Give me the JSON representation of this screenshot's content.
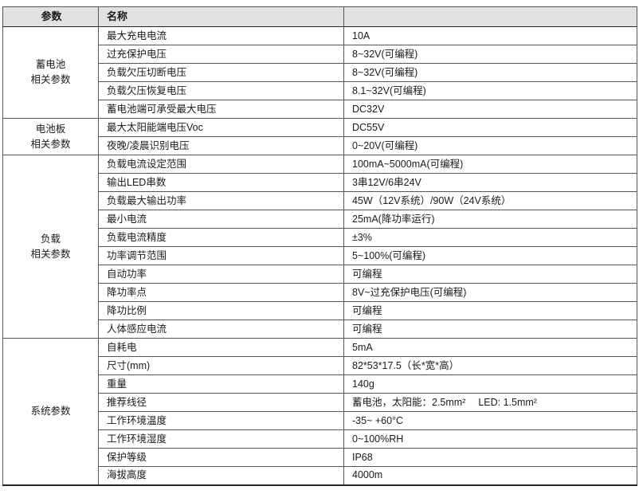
{
  "table": {
    "colors": {
      "header_bg": "#e2e2e2",
      "grid_line": "#555555",
      "outer_border": "#262626",
      "text": "#1a1a1a"
    },
    "header": {
      "col_param": "参数",
      "col_name": "名称",
      "col_value": ""
    },
    "groups": [
      {
        "label": "蓄电池\n相关参数",
        "rows": [
          {
            "name": "最大充电电流",
            "value": "10A"
          },
          {
            "name": "过充保护电压",
            "value": "8~32V(可编程)"
          },
          {
            "name": "负载欠压切断电压",
            "value": "8~32V(可编程)"
          },
          {
            "name": "负载欠压恢复电压",
            "value": "8.1~32V(可编程)"
          },
          {
            "name": "蓄电池端可承受最大电压",
            "value": "DC32V"
          }
        ]
      },
      {
        "label": "电池板\n相关参数",
        "rows": [
          {
            "name": "最大太阳能端电压Voc",
            "value": "DC55V"
          },
          {
            "name": "夜晚/凌晨识别电压",
            "value": "0~20V(可编程)"
          }
        ]
      },
      {
        "label": "负载\n相关参数",
        "rows": [
          {
            "name": "负载电流设定范围",
            "value": "100mA~5000mA(可编程)"
          },
          {
            "name": "输出LED串数",
            "value": "3串12V/6串24V"
          },
          {
            "name": "负载最大输出功率",
            "value": "45W（12V系统）/90W（24V系统）"
          },
          {
            "name": "最小电流",
            "value": "25mA(降功率运行)"
          },
          {
            "name": "负载电流精度",
            "value": "±3%"
          },
          {
            "name": "功率调节范围",
            "value": "5~100%(可编程)"
          },
          {
            "name": "自动功率",
            "value": "可编程"
          },
          {
            "name": "降功率点",
            "value": "8V~过充保护电压(可编程)"
          },
          {
            "name": "降功比例",
            "value": "可编程"
          },
          {
            "name": "人体感应电流",
            "value": "可编程"
          }
        ]
      },
      {
        "label": "系统参数",
        "rows": [
          {
            "name": "自耗电",
            "value": "5mA"
          },
          {
            "name": "尺寸(mm)",
            "value": "82*53*17.5（长*宽*高）"
          },
          {
            "name": "重量",
            "value": "140g"
          },
          {
            "name": "推荐线径",
            "value": "蓄电池，太阳能：2.5mm²　 LED: 1.5mm²"
          },
          {
            "name": "工作环境温度",
            "value": "-35~ +60°C"
          },
          {
            "name": "工作环境湿度",
            "value": "0~100%RH"
          },
          {
            "name": "保护等级",
            "value": "IP68"
          },
          {
            "name": "海拔高度",
            "value": "4000m"
          }
        ]
      }
    ]
  }
}
